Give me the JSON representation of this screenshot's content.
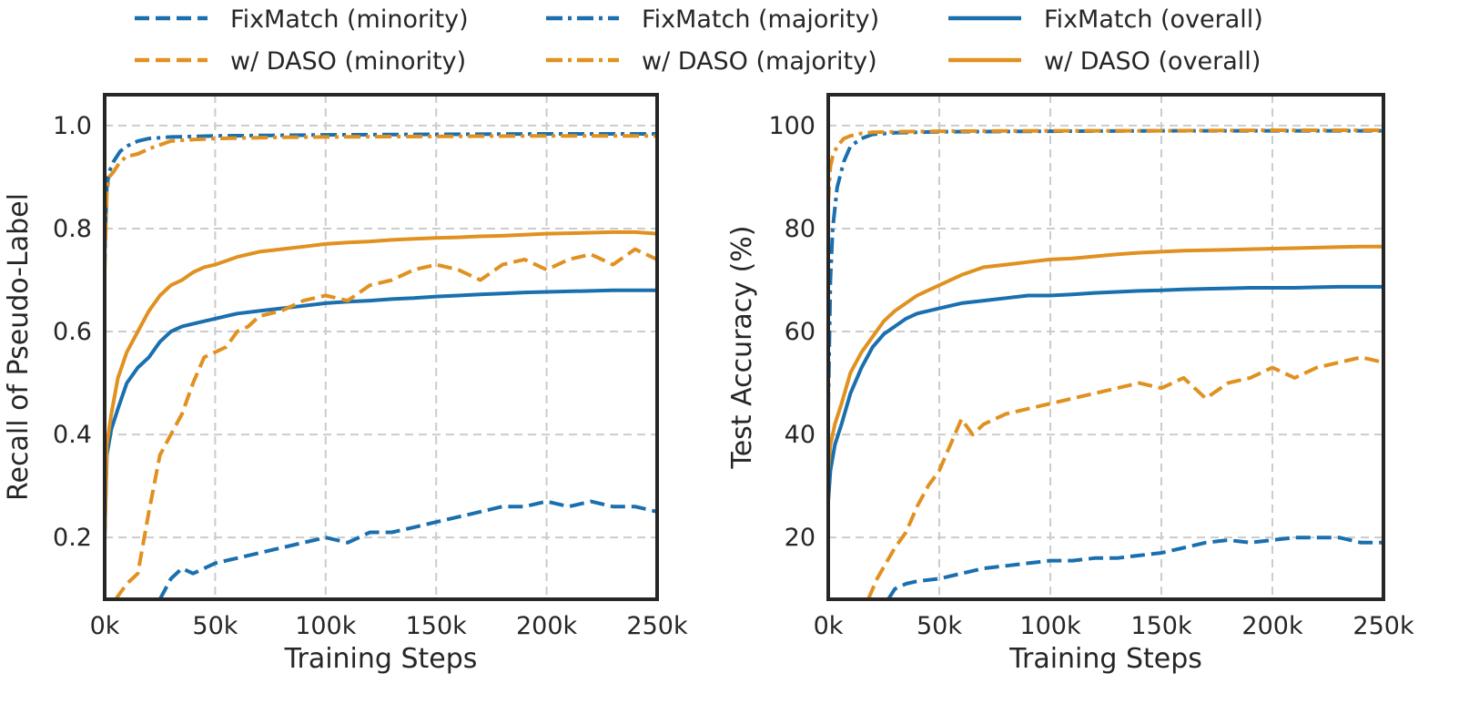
{
  "legend": [
    {
      "label": "FixMatch (minority)",
      "color": "#1a6faf",
      "style": "dashed"
    },
    {
      "label": "FixMatch (majority)",
      "color": "#1a6faf",
      "style": "dashdot"
    },
    {
      "label": "FixMatch (overall)",
      "color": "#1a6faf",
      "style": "solid"
    },
    {
      "label": "w/ DASO (minority)",
      "color": "#e0911f",
      "style": "dashed"
    },
    {
      "label": "w/ DASO (majority)",
      "color": "#e0911f",
      "style": "dashdot"
    },
    {
      "label": "w/ DASO (overall)",
      "color": "#e0911f",
      "style": "solid"
    }
  ],
  "chart_data": [
    {
      "type": "line",
      "xlabel": "Training Steps",
      "ylabel": "Recall of Pseudo-Label",
      "xlim": [
        0,
        250000
      ],
      "ylim": [
        0.08,
        1.06
      ],
      "xticks": [
        0,
        50000,
        100000,
        150000,
        200000,
        250000
      ],
      "xtick_labels": [
        "0k",
        "50k",
        "100k",
        "150k",
        "200k",
        "250k"
      ],
      "yticks": [
        0.2,
        0.4,
        0.6,
        0.8,
        1.0
      ],
      "ytick_labels": [
        "0.2",
        "0.4",
        "0.6",
        "0.8",
        "1.0"
      ],
      "grid": true,
      "series": [
        {
          "name": "FixMatch (minority)",
          "color": "#1a6faf",
          "style": "dashed",
          "x": [
            25000,
            30000,
            35000,
            40000,
            45000,
            50000,
            60000,
            70000,
            80000,
            90000,
            100000,
            110000,
            120000,
            130000,
            140000,
            150000,
            160000,
            170000,
            180000,
            190000,
            200000,
            210000,
            220000,
            230000,
            240000,
            250000
          ],
          "y": [
            0.08,
            0.12,
            0.14,
            0.13,
            0.14,
            0.15,
            0.16,
            0.17,
            0.18,
            0.19,
            0.2,
            0.19,
            0.21,
            0.21,
            0.22,
            0.23,
            0.24,
            0.25,
            0.26,
            0.26,
            0.27,
            0.26,
            0.27,
            0.26,
            0.26,
            0.25
          ]
        },
        {
          "name": "FixMatch (majority)",
          "color": "#1a6faf",
          "style": "dashdot",
          "x": [
            0,
            1000,
            2000,
            4000,
            7000,
            10000,
            15000,
            20000,
            30000,
            40000,
            50000,
            75000,
            100000,
            150000,
            200000,
            250000
          ],
          "y": [
            0.75,
            0.88,
            0.91,
            0.93,
            0.95,
            0.96,
            0.97,
            0.975,
            0.978,
            0.979,
            0.98,
            0.981,
            0.982,
            0.983,
            0.984,
            0.984
          ]
        },
        {
          "name": "FixMatch (overall)",
          "color": "#1a6faf",
          "style": "solid",
          "x": [
            0,
            1000,
            3000,
            6000,
            10000,
            15000,
            20000,
            25000,
            30000,
            35000,
            40000,
            45000,
            50000,
            60000,
            70000,
            80000,
            90000,
            100000,
            110000,
            120000,
            130000,
            140000,
            150000,
            160000,
            170000,
            180000,
            190000,
            200000,
            210000,
            220000,
            230000,
            240000,
            250000
          ],
          "y": [
            0.2,
            0.36,
            0.41,
            0.45,
            0.5,
            0.53,
            0.55,
            0.58,
            0.6,
            0.61,
            0.615,
            0.62,
            0.625,
            0.635,
            0.64,
            0.645,
            0.65,
            0.655,
            0.658,
            0.66,
            0.663,
            0.665,
            0.668,
            0.67,
            0.672,
            0.674,
            0.676,
            0.677,
            0.678,
            0.679,
            0.68,
            0.68,
            0.68
          ]
        },
        {
          "name": "w/ DASO (minority)",
          "color": "#e0911f",
          "style": "dashed",
          "x": [
            5000,
            10000,
            15000,
            20000,
            25000,
            30000,
            35000,
            40000,
            45000,
            50000,
            55000,
            60000,
            65000,
            70000,
            80000,
            90000,
            100000,
            110000,
            120000,
            130000,
            140000,
            150000,
            160000,
            170000,
            180000,
            190000,
            200000,
            210000,
            220000,
            230000,
            240000,
            250000
          ],
          "y": [
            0.08,
            0.11,
            0.13,
            0.25,
            0.36,
            0.4,
            0.44,
            0.5,
            0.55,
            0.56,
            0.57,
            0.6,
            0.61,
            0.63,
            0.64,
            0.66,
            0.67,
            0.66,
            0.69,
            0.7,
            0.72,
            0.73,
            0.72,
            0.7,
            0.73,
            0.74,
            0.72,
            0.74,
            0.75,
            0.73,
            0.76,
            0.74
          ]
        },
        {
          "name": "w/ DASO (majority)",
          "color": "#e0911f",
          "style": "dashdot",
          "x": [
            0,
            1000,
            2000,
            4000,
            7000,
            10000,
            15000,
            20000,
            30000,
            40000,
            50000,
            75000,
            100000,
            150000,
            200000,
            250000
          ],
          "y": [
            0.72,
            0.87,
            0.9,
            0.91,
            0.93,
            0.94,
            0.945,
            0.955,
            0.97,
            0.973,
            0.975,
            0.977,
            0.978,
            0.979,
            0.98,
            0.98
          ]
        },
        {
          "name": "w/ DASO (overall)",
          "color": "#e0911f",
          "style": "solid",
          "x": [
            0,
            1000,
            3000,
            6000,
            10000,
            15000,
            20000,
            25000,
            30000,
            35000,
            40000,
            45000,
            50000,
            60000,
            70000,
            80000,
            90000,
            100000,
            110000,
            120000,
            130000,
            140000,
            150000,
            160000,
            170000,
            180000,
            190000,
            200000,
            210000,
            220000,
            230000,
            240000,
            250000
          ],
          "y": [
            0.2,
            0.38,
            0.44,
            0.51,
            0.56,
            0.6,
            0.64,
            0.67,
            0.69,
            0.7,
            0.715,
            0.725,
            0.73,
            0.745,
            0.755,
            0.76,
            0.765,
            0.77,
            0.773,
            0.775,
            0.778,
            0.78,
            0.782,
            0.783,
            0.785,
            0.786,
            0.788,
            0.79,
            0.791,
            0.792,
            0.793,
            0.793,
            0.79
          ]
        }
      ]
    },
    {
      "type": "line",
      "xlabel": "Training Steps",
      "ylabel": "Test Accuracy (%)",
      "xlim": [
        0,
        250000
      ],
      "ylim": [
        8,
        106
      ],
      "xticks": [
        0,
        50000,
        100000,
        150000,
        200000,
        250000
      ],
      "xtick_labels": [
        "0k",
        "50k",
        "100k",
        "150k",
        "200k",
        "250k"
      ],
      "yticks": [
        20,
        40,
        60,
        80,
        100
      ],
      "ytick_labels": [
        "20",
        "40",
        "60",
        "80",
        "100"
      ],
      "grid": true,
      "series": [
        {
          "name": "FixMatch (minority)",
          "color": "#1a6faf",
          "style": "dashed",
          "x": [
            27000,
            30000,
            35000,
            40000,
            50000,
            60000,
            70000,
            80000,
            90000,
            100000,
            110000,
            120000,
            130000,
            140000,
            150000,
            160000,
            170000,
            180000,
            190000,
            200000,
            210000,
            220000,
            230000,
            240000,
            250000
          ],
          "y": [
            8,
            10,
            11,
            11.5,
            12,
            13,
            14,
            14.5,
            15,
            15.5,
            15.5,
            16,
            16,
            16.5,
            17,
            18,
            19,
            19.5,
            19,
            19.5,
            20,
            20,
            20,
            19,
            19
          ]
        },
        {
          "name": "FixMatch (majority)",
          "color": "#1a6faf",
          "style": "dashdot",
          "x": [
            0,
            1000,
            2000,
            4000,
            7000,
            10000,
            15000,
            20000,
            30000,
            50000,
            100000,
            150000,
            200000,
            250000
          ],
          "y": [
            45,
            70,
            80,
            88,
            93,
            96,
            97.5,
            98.3,
            98.6,
            98.8,
            98.9,
            99,
            99,
            99
          ]
        },
        {
          "name": "FixMatch (overall)",
          "color": "#1a6faf",
          "style": "solid",
          "x": [
            0,
            1000,
            3000,
            6000,
            10000,
            15000,
            20000,
            25000,
            30000,
            35000,
            40000,
            45000,
            50000,
            60000,
            70000,
            80000,
            90000,
            100000,
            110000,
            120000,
            130000,
            140000,
            150000,
            160000,
            170000,
            180000,
            190000,
            200000,
            210000,
            220000,
            230000,
            240000,
            250000
          ],
          "y": [
            27,
            33,
            38,
            42,
            48,
            53,
            57,
            59.5,
            61,
            62.5,
            63.5,
            64,
            64.5,
            65.5,
            66,
            66.5,
            67,
            67,
            67.2,
            67.5,
            67.7,
            67.9,
            68,
            68.2,
            68.3,
            68.4,
            68.5,
            68.5,
            68.5,
            68.6,
            68.7,
            68.7,
            68.7
          ]
        },
        {
          "name": "w/ DASO (minority)",
          "color": "#e0911f",
          "style": "dashed",
          "x": [
            18000,
            22000,
            26000,
            30000,
            35000,
            40000,
            45000,
            50000,
            55000,
            60000,
            65000,
            70000,
            80000,
            90000,
            100000,
            110000,
            120000,
            130000,
            140000,
            150000,
            160000,
            170000,
            180000,
            190000,
            200000,
            210000,
            220000,
            230000,
            240000,
            250000
          ],
          "y": [
            8,
            12,
            15,
            18,
            21,
            26,
            30,
            33,
            38,
            43,
            40,
            42,
            44,
            45,
            46,
            47,
            48,
            49,
            50,
            49,
            51,
            47,
            50,
            51,
            53,
            51,
            53,
            54,
            55,
            54
          ]
        },
        {
          "name": "w/ DASO (majority)",
          "color": "#e0911f",
          "style": "dashdot",
          "x": [
            0,
            1000,
            2000,
            4000,
            7000,
            10000,
            15000,
            20000,
            30000,
            50000,
            100000,
            150000,
            200000,
            250000
          ],
          "y": [
            85,
            92,
            94,
            96,
            97.5,
            98,
            98.5,
            98.7,
            98.8,
            98.9,
            99,
            99,
            99.1,
            99.1
          ]
        },
        {
          "name": "w/ DASO (overall)",
          "color": "#e0911f",
          "style": "solid",
          "x": [
            0,
            1000,
            3000,
            6000,
            10000,
            15000,
            20000,
            25000,
            30000,
            35000,
            40000,
            45000,
            50000,
            60000,
            70000,
            80000,
            90000,
            100000,
            110000,
            120000,
            130000,
            140000,
            150000,
            160000,
            170000,
            180000,
            190000,
            200000,
            210000,
            220000,
            230000,
            240000,
            250000
          ],
          "y": [
            33,
            38,
            42,
            46,
            52,
            56,
            59,
            62,
            64,
            65.5,
            67,
            68,
            69,
            71,
            72.5,
            73,
            73.5,
            74,
            74.2,
            74.6,
            75,
            75.3,
            75.5,
            75.7,
            75.8,
            75.9,
            76,
            76.1,
            76.2,
            76.3,
            76.4,
            76.5,
            76.5
          ]
        }
      ]
    }
  ]
}
